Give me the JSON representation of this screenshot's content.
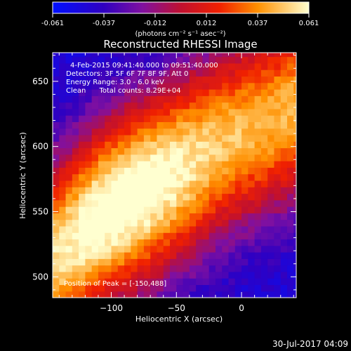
{
  "colorbar": {
    "ticks": [
      "-0.061",
      "-0.037",
      "-0.012",
      "0.012",
      "0.037",
      "0.061"
    ],
    "units": "(photons cm⁻² s⁻¹ asec⁻²)",
    "range": [
      -0.061,
      0.061
    ]
  },
  "chart_data": {
    "type": "heatmap",
    "title": "Reconstructed RHESSI Image",
    "xlabel": "Heliocentric X (arcsec)",
    "ylabel": "Heliocentric Y (arcsec)",
    "xlim": [
      -145,
      42
    ],
    "ylim": [
      484,
      672
    ],
    "x_ticks": [
      -100,
      -50,
      0
    ],
    "y_ticks": [
      500,
      550,
      600,
      650
    ],
    "annotations": [
      "4-Feb-2015 09:41:40.000 to 09:51:40.000",
      "Detectors: 3F 5F 6F 7F 8F 9F, Att 0",
      "Energy Range: 3.0 - 6.0 keV",
      "Clean      Total counts: 8.29E+04"
    ],
    "peak_label": "Position of Peak = [-150,488]",
    "peak": [
      -150,
      488
    ],
    "ridge": {
      "description": "bright emission band running from lower-left to upper-right",
      "points": [
        [
          -145,
          515
        ],
        [
          -110,
          545
        ],
        [
          -60,
          575
        ],
        [
          -10,
          605
        ],
        [
          42,
          630
        ]
      ],
      "width_arcsec": 38,
      "peak_value": 0.061,
      "background_value": -0.03
    }
  },
  "footer": {
    "timestamp": "30-Jul-2017 04:09"
  }
}
